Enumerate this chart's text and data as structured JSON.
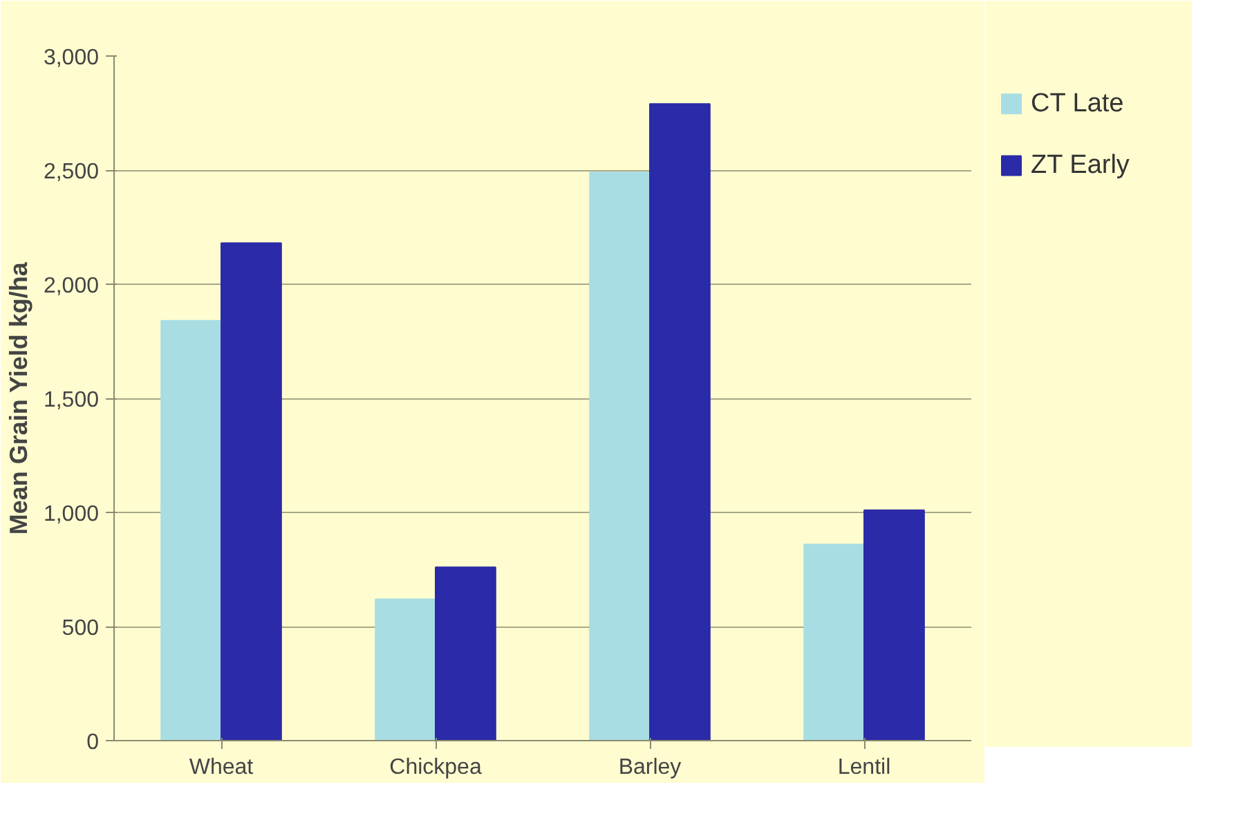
{
  "chart_data": {
    "type": "bar",
    "ylabel": "Mean Grain Yield kg/ha",
    "categories": [
      "Wheat",
      "Chickpea",
      "Barley",
      "Lentil"
    ],
    "series": [
      {
        "name": "CT Late",
        "color": "#a8dde4",
        "values": [
          1840,
          620,
          2490,
          860
        ]
      },
      {
        "name": "ZT Early",
        "color": "#2b2aa8",
        "values": [
          2180,
          760,
          2790,
          1010
        ]
      }
    ],
    "ylim": [
      0,
      3000
    ],
    "yticks": [
      {
        "value": 0,
        "label": "0"
      },
      {
        "value": 500,
        "label": "500"
      },
      {
        "value": 1000,
        "label": "1,000"
      },
      {
        "value": 1500,
        "label": "1,500"
      },
      {
        "value": 2000,
        "label": "2,000"
      },
      {
        "value": 2500,
        "label": "2,500"
      },
      {
        "value": 3000,
        "label": "3,000"
      }
    ],
    "grid": "y",
    "legend": "top right"
  }
}
